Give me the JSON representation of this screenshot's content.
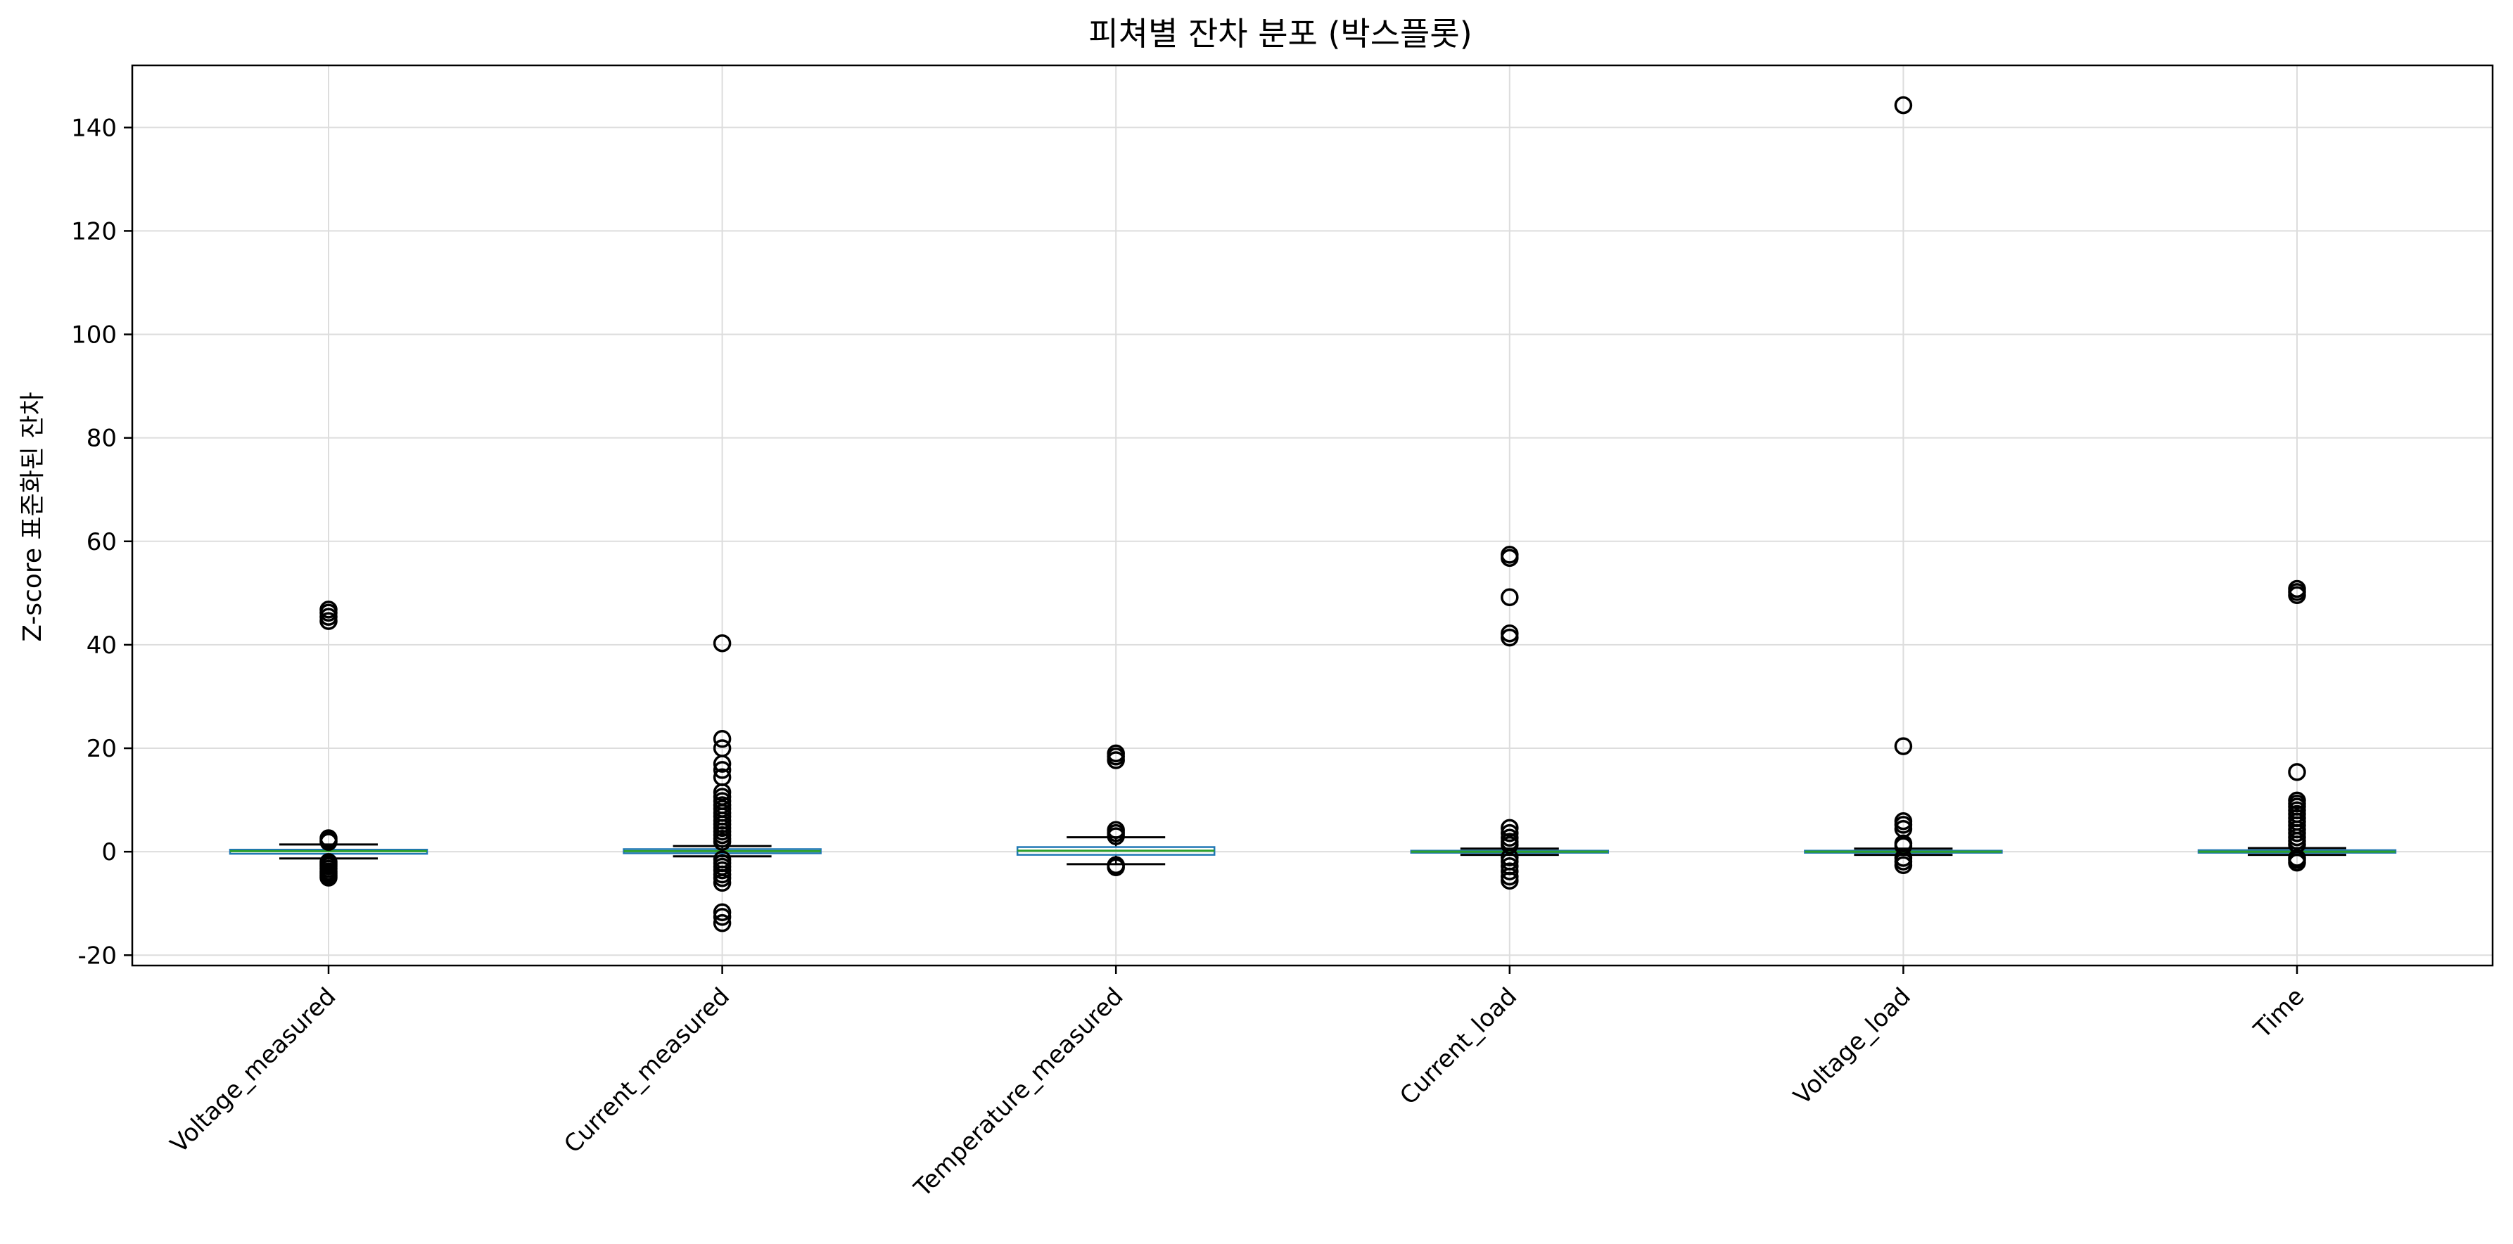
{
  "chart_data": {
    "type": "boxplot",
    "title": "피쳐별 잔차 분포 (박스플롯)",
    "xlabel": "",
    "ylabel": "Z-score 표준화된 잔차",
    "ylim": [
      -22,
      152
    ],
    "yticks": [
      -20,
      0,
      20,
      40,
      60,
      80,
      100,
      120,
      140
    ],
    "ytick_labels": [
      "-20",
      "0",
      "20",
      "40",
      "60",
      "80",
      "100",
      "120",
      "140"
    ],
    "grid": true,
    "categories": [
      "Voltage_measured",
      "Current_measured",
      "Temperature_measured",
      "Current_load",
      "Voltage_load",
      "Time"
    ],
    "boxes": [
      {
        "category": "Voltage_measured",
        "whisker_low": -1.3,
        "q1": -0.4,
        "median": 0.1,
        "q3": 0.4,
        "whisker_high": 1.4,
        "outliers": [
          46.8,
          46.2,
          45.4,
          44.6,
          2.6,
          2.2,
          1.9,
          -2.0,
          -2.4,
          -2.8,
          -3.3,
          -3.8,
          -4.2,
          -4.6,
          -5.0
        ]
      },
      {
        "category": "Current_measured",
        "whisker_low": -0.9,
        "q1": -0.3,
        "median": 0.1,
        "q3": 0.5,
        "whisker_high": 1.1,
        "outliers": [
          40.3,
          21.8,
          20.0,
          17.0,
          15.8,
          14.4,
          11.5,
          10.6,
          9.8,
          9.0,
          8.3,
          7.5,
          6.8,
          6.0,
          5.3,
          4.6,
          3.9,
          3.2,
          2.5,
          1.9,
          -1.5,
          -2.2,
          -2.9,
          -3.6,
          -4.4,
          -5.1,
          -6.0,
          -11.7,
          -12.6,
          -13.8
        ]
      },
      {
        "category": "Temperature_measured",
        "whisker_low": -2.4,
        "q1": -0.6,
        "median": 0.2,
        "q3": 0.9,
        "whisker_high": 2.8,
        "outliers": [
          19.0,
          18.4,
          17.7,
          4.2,
          3.6,
          3.0,
          -2.6,
          -3.0
        ]
      },
      {
        "category": "Current_load",
        "whisker_low": -0.6,
        "q1": -0.2,
        "median": 0.0,
        "q3": 0.2,
        "whisker_high": 0.6,
        "outliers": [
          57.4,
          56.8,
          49.2,
          42.2,
          41.4,
          4.6,
          3.6,
          2.7,
          1.9,
          1.3,
          -1.1,
          -1.9,
          -2.8,
          -3.8,
          -4.8,
          -5.6
        ]
      },
      {
        "category": "Voltage_load",
        "whisker_low": -0.6,
        "q1": -0.2,
        "median": 0.0,
        "q3": 0.2,
        "whisker_high": 0.6,
        "outliers": [
          144.3,
          20.4,
          5.9,
          5.2,
          4.4,
          1.6,
          1.1,
          -1.2,
          -1.9,
          -2.6
        ]
      },
      {
        "category": "Time",
        "whisker_low": -0.6,
        "q1": -0.2,
        "median": 0.0,
        "q3": 0.3,
        "whisker_high": 0.7,
        "outliers": [
          50.8,
          50.2,
          49.6,
          15.4,
          9.9,
          9.3,
          8.7,
          8.0,
          7.3,
          6.5,
          5.8,
          5.1,
          4.3,
          3.6,
          2.8,
          2.1,
          1.4,
          -1.2,
          -1.6,
          -2.1
        ]
      }
    ],
    "colors": {
      "box_edge": "#1f77b4",
      "median": "#2ca02c",
      "whisker": "#000000",
      "outlier_edge": "#000000",
      "grid": "#dddddd",
      "frame": "#000000"
    }
  }
}
